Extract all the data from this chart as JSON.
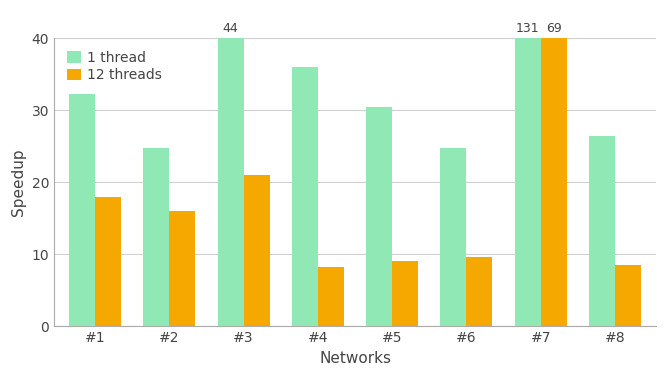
{
  "categories": [
    "#1",
    "#2",
    "#3",
    "#4",
    "#5",
    "#6",
    "#7",
    "#8"
  ],
  "values_1thread": [
    32.3,
    24.8,
    40.0,
    36.0,
    30.5,
    24.8,
    40.0,
    26.5
  ],
  "values_12thread": [
    18.0,
    16.0,
    21.0,
    8.2,
    9.1,
    9.6,
    40.0,
    8.5
  ],
  "annotations_1thread": [
    null,
    null,
    "44",
    null,
    null,
    null,
    "131",
    null
  ],
  "annotations_12thread": [
    null,
    null,
    null,
    null,
    null,
    null,
    "69",
    null
  ],
  "color_1thread": "#90E8B5",
  "color_12thread": "#F5A800",
  "xlabel": "Networks",
  "ylabel": "Speedup",
  "ylim": [
    0,
    40
  ],
  "yticks": [
    0,
    10,
    20,
    30,
    40
  ],
  "legend_labels": [
    "1 thread",
    "12 threads"
  ],
  "bar_width": 0.35,
  "axis_fontsize": 11,
  "tick_fontsize": 10,
  "annotation_fontsize": 9,
  "legend_fontsize": 10,
  "background_color": "#ffffff",
  "grid_color": "#d0d0d0",
  "spine_color": "#aaaaaa",
  "text_color": "#444444"
}
